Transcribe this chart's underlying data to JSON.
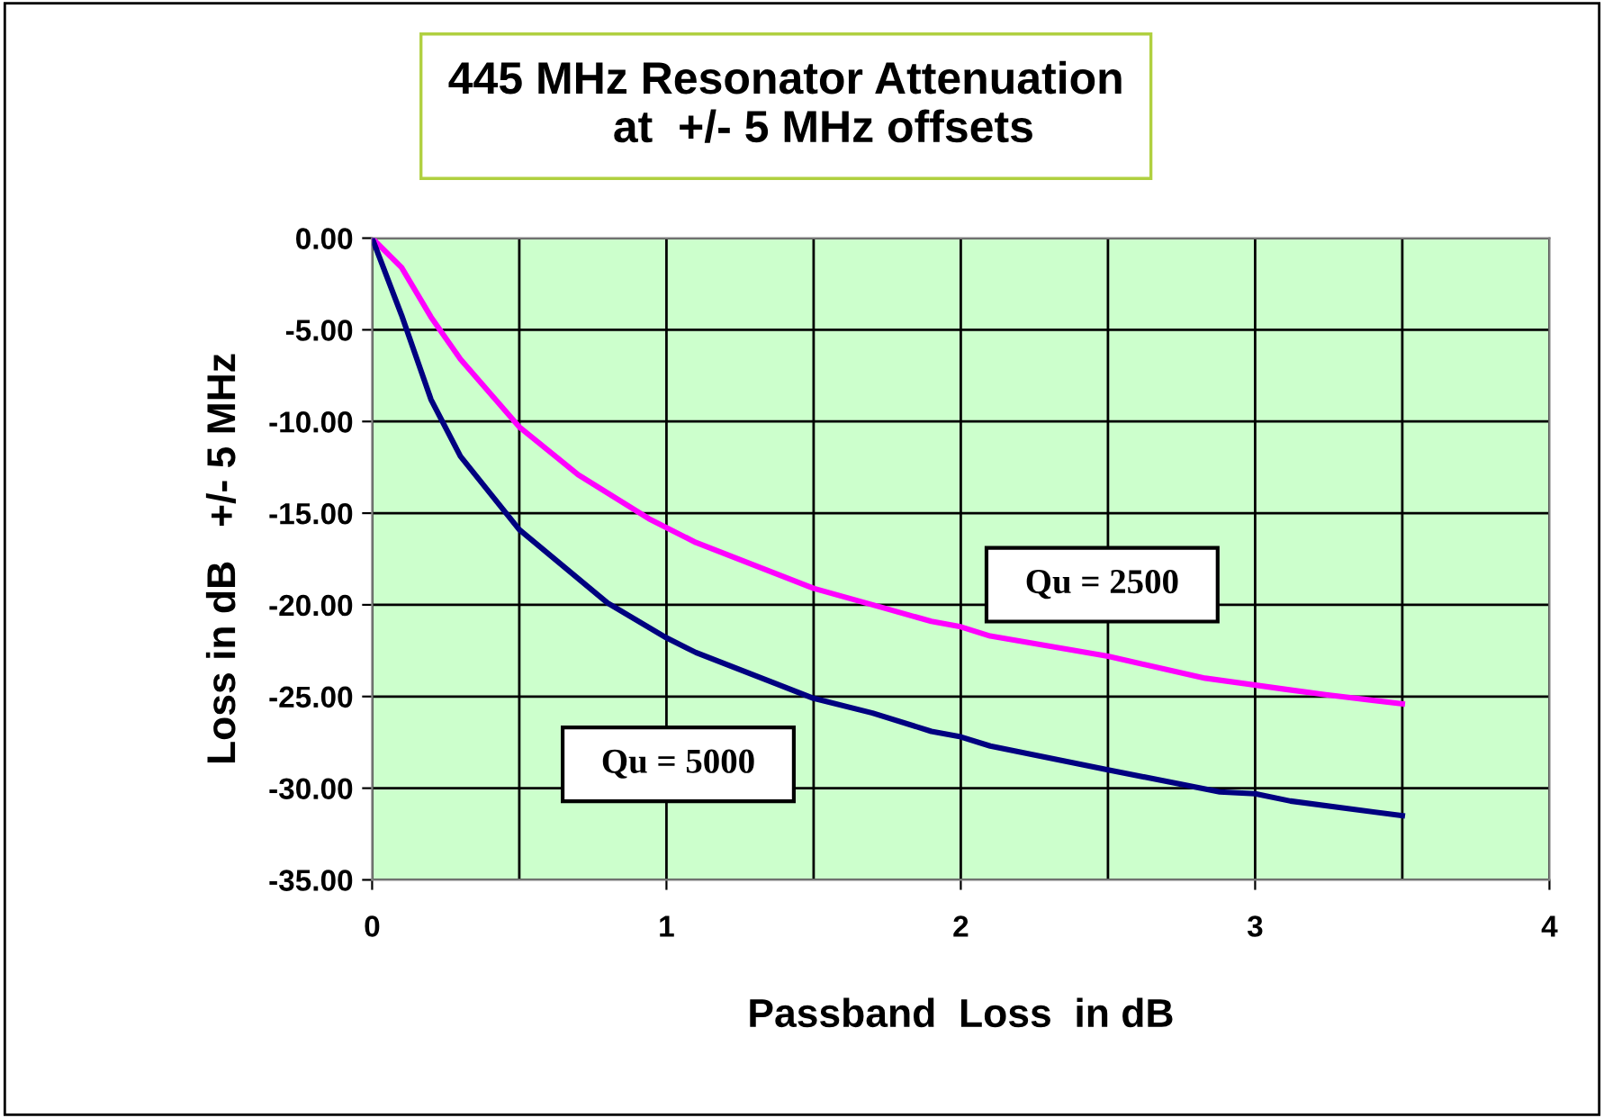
{
  "chart_data": {
    "type": "line",
    "title": "445 MHz Resonator Attenuation\n      at  +/- 5 MHz offsets",
    "xlabel": "Passband  Loss  in dB",
    "ylabel": "Loss in dB   +/- 5 MHz",
    "series": [
      {
        "name": "Qu = 2500",
        "color": "#ff00ff",
        "x": [
          0,
          0.1,
          0.2,
          0.3,
          0.5,
          0.7,
          0.94,
          1.1,
          1.5,
          1.7,
          1.9,
          2.0,
          2.1,
          2.5,
          2.83,
          3.1,
          3.24,
          3.5
        ],
        "values": [
          0,
          -1.6,
          -4.3,
          -6.6,
          -10.3,
          -12.9,
          -15.3,
          -16.6,
          -19.1,
          -20.0,
          -20.9,
          -21.2,
          -21.7,
          -22.8,
          -24.0,
          -24.6,
          -24.9,
          -25.4
        ]
      },
      {
        "name": "Qu = 5000",
        "color": "#000080",
        "x": [
          0,
          0.1,
          0.2,
          0.3,
          0.5,
          0.8,
          1.0,
          1.1,
          1.5,
          1.7,
          1.9,
          2.0,
          2.1,
          2.5,
          2.88,
          3.0,
          3.12,
          3.5
        ],
        "values": [
          0,
          -4.2,
          -8.8,
          -11.9,
          -15.9,
          -19.9,
          -21.8,
          -22.6,
          -25.1,
          -25.9,
          -26.9,
          -27.2,
          -27.7,
          -29.0,
          -30.2,
          -30.3,
          -30.7,
          -31.5
        ]
      }
    ],
    "xlim": [
      0,
      4
    ],
    "xticks": [
      0,
      1,
      2,
      3,
      4
    ],
    "ylim": [
      -35,
      0
    ],
    "yticks": [
      {
        "value": 0,
        "label": "0.00"
      },
      {
        "value": -5,
        "label": "-5.00"
      },
      {
        "value": -10,
        "label": "-10.00"
      },
      {
        "value": -15,
        "label": "-15.00"
      },
      {
        "value": -20,
        "label": "-20.00"
      },
      {
        "value": -25,
        "label": "-25.00"
      },
      {
        "value": -30,
        "label": "-30.00"
      },
      {
        "value": -35,
        "label": "-35.00"
      }
    ],
    "grid": true,
    "legend": false,
    "marker": "none",
    "line_style": "solid"
  }
}
